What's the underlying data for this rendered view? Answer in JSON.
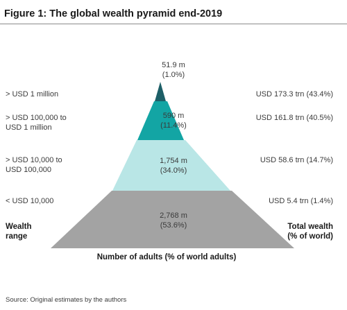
{
  "title": "Figure 1: The global wealth pyramid end-2019",
  "left_axis_label": [
    "Wealth",
    "range"
  ],
  "right_axis_label": [
    "Total wealth",
    "(% of world)"
  ],
  "x_axis_label": "Number of adults (% of world adults)",
  "source": "Source: Original estimates by the authors",
  "colors": {
    "tier1": "#1d5f67",
    "tier2": "#13a5a4",
    "tier3": "#b9e6e6",
    "tier4": "#a3a3a3"
  },
  "tiers": [
    {
      "range_lines": [
        "> USD 1 million"
      ],
      "adults_lines": [
        "51.9 m",
        "(1.0%)"
      ],
      "wealth": "USD 173.3 trn (43.4%)",
      "adults_millions": 51.9,
      "adults_pct": 1.0,
      "wealth_trn": 173.3,
      "wealth_pct": 43.4
    },
    {
      "range_lines": [
        "> USD 100,000 to",
        "USD 1 million"
      ],
      "adults_lines": [
        "590 m",
        "(11.4%)"
      ],
      "wealth": "USD 161.8 trn (40.5%)",
      "adults_millions": 590,
      "adults_pct": 11.4,
      "wealth_trn": 161.8,
      "wealth_pct": 40.5
    },
    {
      "range_lines": [
        "> USD 10,000 to",
        "USD 100,000"
      ],
      "adults_lines": [
        "1,754 m",
        "(34.0%)"
      ],
      "wealth": "USD 58.6 trn (14.7%)",
      "adults_millions": 1754,
      "adults_pct": 34.0,
      "wealth_trn": 58.6,
      "wealth_pct": 14.7
    },
    {
      "range_lines": [
        "< USD 10,000"
      ],
      "adults_lines": [
        "2,768 m",
        "(53.6%)"
      ],
      "wealth": "USD 5.4 trn (1.4%)",
      "adults_millions": 2768,
      "adults_pct": 53.6,
      "wealth_trn": 5.4,
      "wealth_pct": 1.4
    }
  ]
}
